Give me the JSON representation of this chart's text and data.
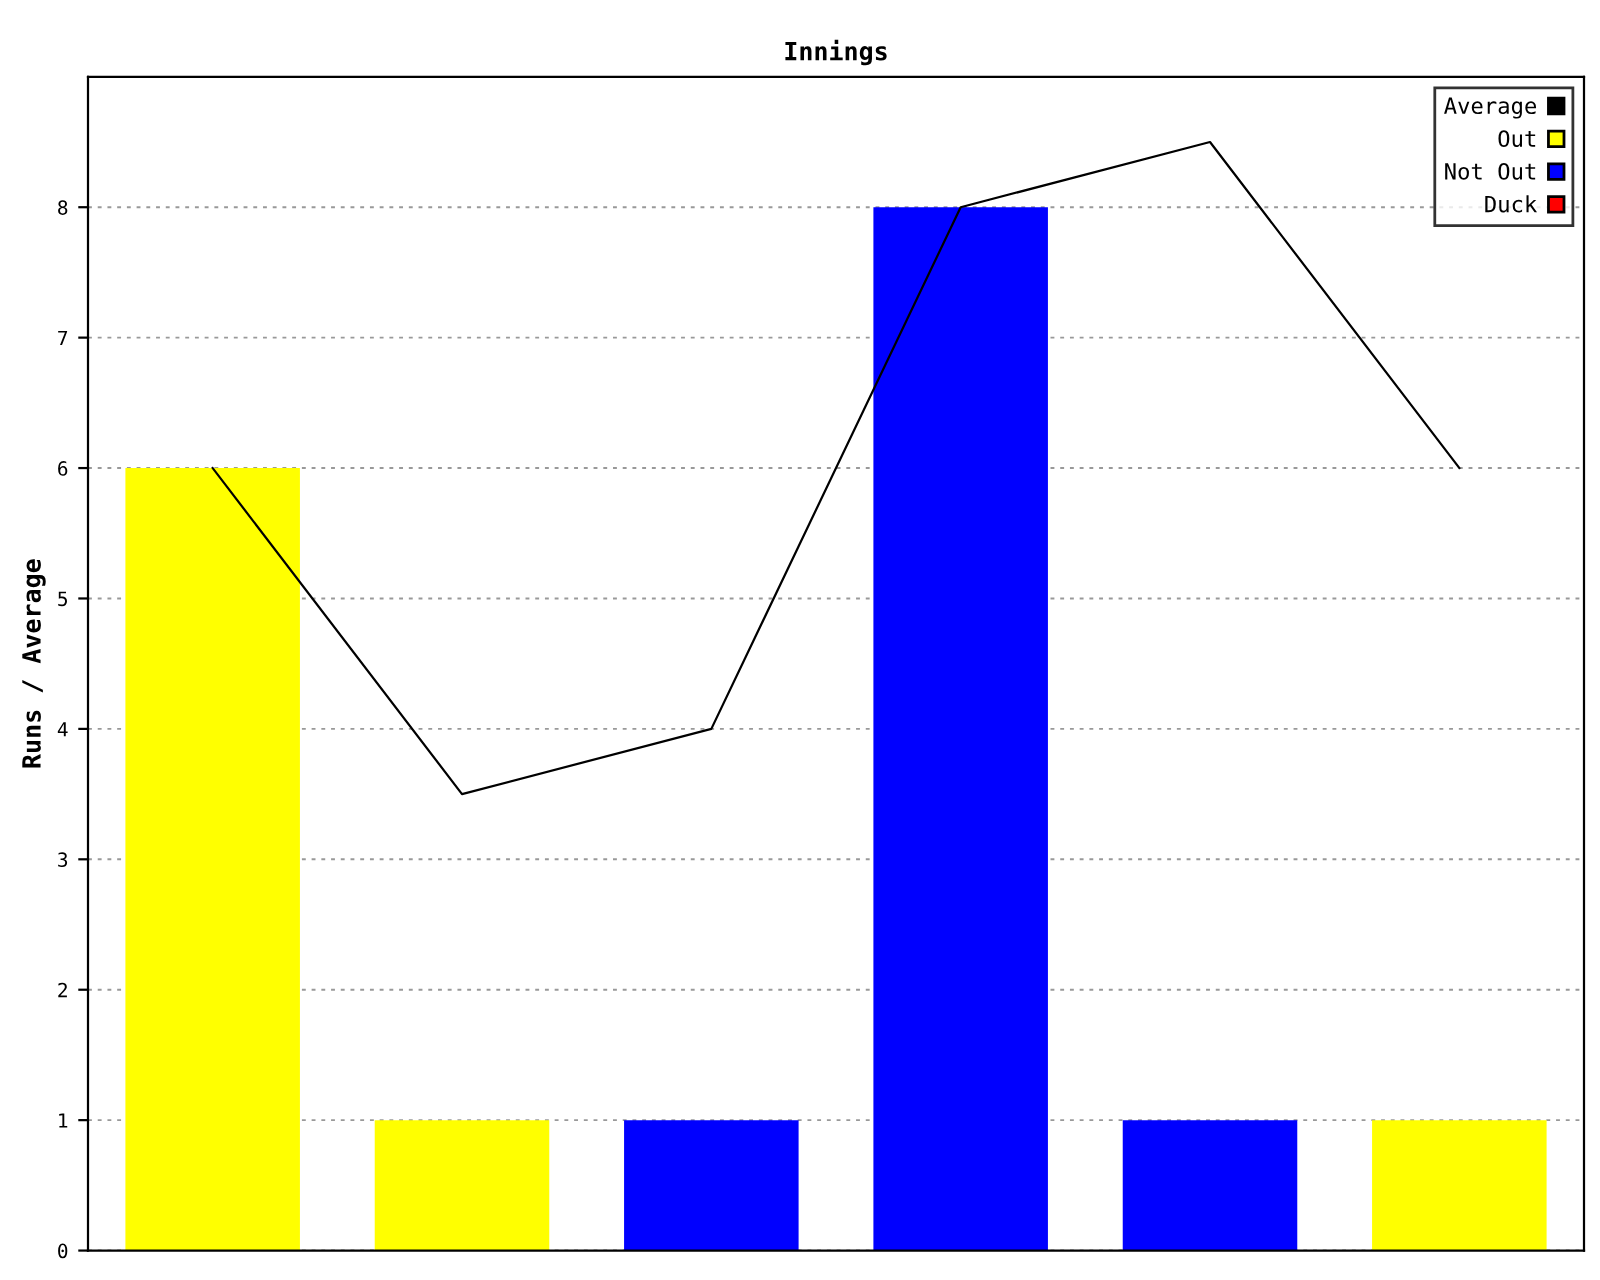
{
  "chart_data": {
    "type": "bar",
    "title": "Innings",
    "ylabel": "Runs / Average",
    "categories": [
      null,
      null,
      null,
      null,
      null,
      null
    ],
    "series": [
      {
        "name": "Average",
        "type": "line",
        "color": "#000000",
        "values": [
          6,
          3.5,
          4,
          8,
          8.5,
          6
        ]
      },
      {
        "name": "Out",
        "color": "#ffff00",
        "values": [
          6,
          1,
          null,
          null,
          null,
          1
        ]
      },
      {
        "name": "Not Out",
        "color": "#0000ff",
        "values": [
          null,
          null,
          1,
          8,
          1,
          null
        ]
      },
      {
        "name": "Duck",
        "color": "#ff0000",
        "values": [
          null,
          null,
          null,
          null,
          null,
          null
        ]
      }
    ],
    "ylim": [
      0,
      9
    ],
    "yticks": [
      0,
      1,
      2,
      3,
      4,
      5,
      6,
      7,
      8
    ],
    "grid": "y",
    "legend": "top right",
    "marker": "none",
    "line_style": "solid"
  }
}
